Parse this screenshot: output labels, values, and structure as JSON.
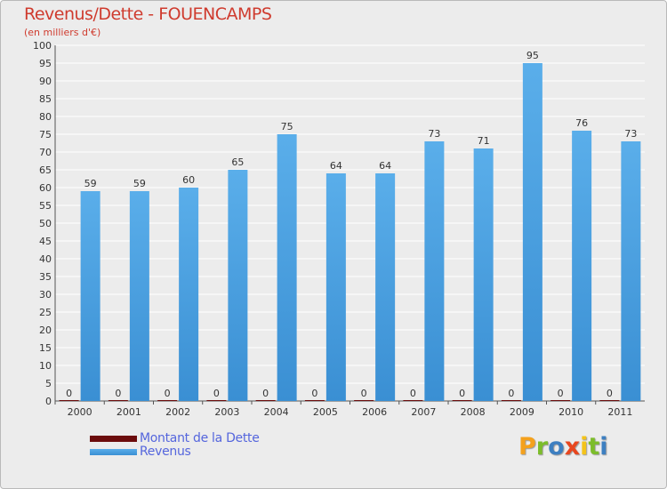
{
  "colors": {
    "title": "#cf3b2e",
    "dette": "#6b0c0c",
    "revenus_light": "#5aaeea",
    "revenus_dark": "#3a8fd3",
    "legend_text": "#5566dd",
    "brand": [
      "#f4a11d",
      "#7cbd2b",
      "#3d7fc1",
      "#e8461e",
      "#f4c31a",
      "#7cbd2b",
      "#3d7fc1"
    ]
  },
  "chart_data": {
    "type": "bar",
    "title": "Revenus/Dette - FOUENCAMPS",
    "subtitle": "(en milliers d'€)",
    "categories": [
      "2000",
      "2001",
      "2002",
      "2003",
      "2004",
      "2005",
      "2006",
      "2007",
      "2008",
      "2009",
      "2010",
      "2011"
    ],
    "series": [
      {
        "name": "Montant de la Dette",
        "values": [
          0,
          0,
          0,
          0,
          0,
          0,
          0,
          0,
          0,
          0,
          0,
          0
        ]
      },
      {
        "name": "Revenus",
        "values": [
          59,
          59,
          60,
          65,
          75,
          64,
          64,
          73,
          71,
          95,
          76,
          73
        ]
      }
    ],
    "ylim": [
      0,
      100
    ],
    "ytick_step": 5,
    "grid": true,
    "legend_position": "bottom-left"
  },
  "brand": {
    "letters": [
      "P",
      "r",
      "o",
      "x",
      "i",
      "t",
      "i"
    ]
  }
}
